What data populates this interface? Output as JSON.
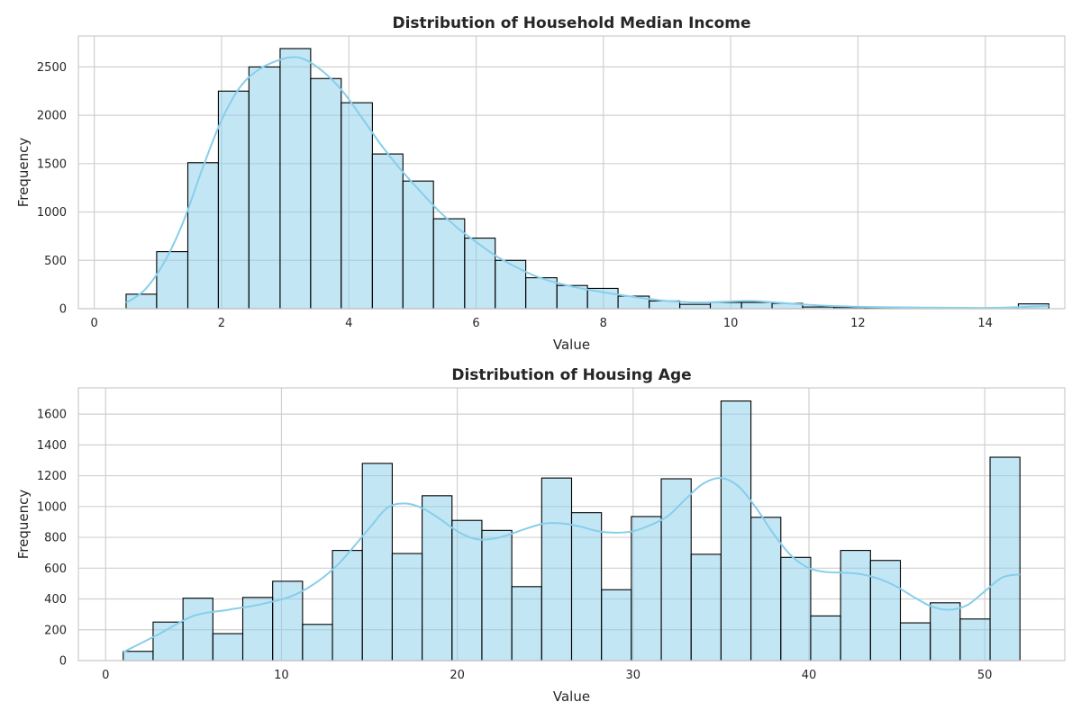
{
  "chart_data": [
    {
      "type": "bar",
      "title": "Distribution of Household Median Income",
      "xlabel": "Value",
      "ylabel": "Frequency",
      "xlim": [
        -0.25,
        15.25
      ],
      "ylim": [
        0,
        2820
      ],
      "xticks": [
        0,
        2,
        4,
        6,
        8,
        10,
        12,
        14
      ],
      "yticks": [
        0,
        500,
        1000,
        1500,
        2000,
        2500
      ],
      "grid": true,
      "bar_color": "#87CEEB",
      "edge_color": "#000000",
      "kde_color": "#87CEEB",
      "bins": [
        {
          "x0": 0.5,
          "x1": 0.98,
          "value": 150
        },
        {
          "x0": 0.98,
          "x1": 1.47,
          "value": 590
        },
        {
          "x0": 1.47,
          "x1": 1.95,
          "value": 1510
        },
        {
          "x0": 1.95,
          "x1": 2.43,
          "value": 2250
        },
        {
          "x0": 2.43,
          "x1": 2.92,
          "value": 2500
        },
        {
          "x0": 2.92,
          "x1": 3.4,
          "value": 2690
        },
        {
          "x0": 3.4,
          "x1": 3.88,
          "value": 2380
        },
        {
          "x0": 3.88,
          "x1": 4.37,
          "value": 2130
        },
        {
          "x0": 4.37,
          "x1": 4.85,
          "value": 1600
        },
        {
          "x0": 4.85,
          "x1": 5.33,
          "value": 1320
        },
        {
          "x0": 5.33,
          "x1": 5.82,
          "value": 930
        },
        {
          "x0": 5.82,
          "x1": 6.3,
          "value": 730
        },
        {
          "x0": 6.3,
          "x1": 6.78,
          "value": 500
        },
        {
          "x0": 6.78,
          "x1": 7.27,
          "value": 320
        },
        {
          "x0": 7.27,
          "x1": 7.75,
          "value": 240
        },
        {
          "x0": 7.75,
          "x1": 8.23,
          "value": 210
        },
        {
          "x0": 8.23,
          "x1": 8.72,
          "value": 130
        },
        {
          "x0": 8.72,
          "x1": 9.2,
          "value": 80
        },
        {
          "x0": 9.2,
          "x1": 9.68,
          "value": 45
        },
        {
          "x0": 9.68,
          "x1": 10.17,
          "value": 65
        },
        {
          "x0": 10.17,
          "x1": 10.65,
          "value": 65
        },
        {
          "x0": 10.65,
          "x1": 11.13,
          "value": 55
        },
        {
          "x0": 11.13,
          "x1": 11.62,
          "value": 18
        },
        {
          "x0": 11.62,
          "x1": 12.1,
          "value": 12
        },
        {
          "x0": 12.1,
          "x1": 12.58,
          "value": 8
        },
        {
          "x0": 12.58,
          "x1": 13.07,
          "value": 6
        },
        {
          "x0": 13.07,
          "x1": 13.55,
          "value": 5
        },
        {
          "x0": 13.55,
          "x1": 14.03,
          "value": 4
        },
        {
          "x0": 14.03,
          "x1": 14.52,
          "value": 3
        },
        {
          "x0": 14.52,
          "x1": 15.0,
          "value": 50
        }
      ],
      "kde": {
        "x": [
          0.5,
          0.8,
          1.1,
          1.4,
          1.7,
          2.0,
          2.3,
          2.6,
          2.9,
          3.1,
          3.3,
          3.6,
          3.9,
          4.2,
          4.5,
          4.8,
          5.1,
          5.4,
          5.7,
          6.0,
          6.3,
          6.6,
          7.0,
          7.5,
          8.0,
          8.5,
          9.0,
          9.5,
          10.0,
          10.3,
          10.6,
          11.0,
          11.5,
          12.0,
          12.5,
          13.0,
          13.5,
          14.0,
          14.5,
          15.0
        ],
        "y": [
          60,
          200,
          480,
          900,
          1450,
          1950,
          2300,
          2480,
          2570,
          2600,
          2580,
          2450,
          2250,
          1980,
          1700,
          1450,
          1230,
          1020,
          840,
          690,
          550,
          440,
          320,
          230,
          170,
          120,
          80,
          65,
          75,
          80,
          70,
          50,
          30,
          20,
          15,
          12,
          10,
          8,
          15,
          30
        ]
      }
    },
    {
      "type": "bar",
      "title": "Distribution of Housing Age",
      "xlabel": "Value",
      "ylabel": "Frequency",
      "xlim": [
        -1.55,
        54.55
      ],
      "ylim": [
        0,
        1770
      ],
      "xticks": [
        0,
        10,
        20,
        30,
        40,
        50
      ],
      "yticks": [
        0,
        200,
        400,
        600,
        800,
        1000,
        1200,
        1400,
        1600
      ],
      "grid": true,
      "bar_color": "#87CEEB",
      "edge_color": "#000000",
      "kde_color": "#87CEEB",
      "bins": [
        {
          "x0": 1.0,
          "x1": 2.7,
          "value": 60
        },
        {
          "x0": 2.7,
          "x1": 4.4,
          "value": 250
        },
        {
          "x0": 4.4,
          "x1": 6.1,
          "value": 405
        },
        {
          "x0": 6.1,
          "x1": 7.8,
          "value": 175
        },
        {
          "x0": 7.8,
          "x1": 9.5,
          "value": 410
        },
        {
          "x0": 9.5,
          "x1": 11.2,
          "value": 515
        },
        {
          "x0": 11.2,
          "x1": 12.9,
          "value": 235
        },
        {
          "x0": 12.9,
          "x1": 14.6,
          "value": 715
        },
        {
          "x0": 14.6,
          "x1": 16.3,
          "value": 1280
        },
        {
          "x0": 16.3,
          "x1": 18.0,
          "value": 695
        },
        {
          "x0": 18.0,
          "x1": 19.7,
          "value": 1070
        },
        {
          "x0": 19.7,
          "x1": 21.4,
          "value": 910
        },
        {
          "x0": 21.4,
          "x1": 23.1,
          "value": 845
        },
        {
          "x0": 23.1,
          "x1": 24.8,
          "value": 480
        },
        {
          "x0": 24.8,
          "x1": 26.5,
          "value": 1185
        },
        {
          "x0": 26.5,
          "x1": 28.2,
          "value": 960
        },
        {
          "x0": 28.2,
          "x1": 29.9,
          "value": 460
        },
        {
          "x0": 29.9,
          "x1": 31.6,
          "value": 935
        },
        {
          "x0": 31.6,
          "x1": 33.3,
          "value": 1180
        },
        {
          "x0": 33.3,
          "x1": 35.0,
          "value": 690
        },
        {
          "x0": 35.0,
          "x1": 36.7,
          "value": 1685
        },
        {
          "x0": 36.7,
          "x1": 38.4,
          "value": 930
        },
        {
          "x0": 38.4,
          "x1": 40.1,
          "value": 670
        },
        {
          "x0": 40.1,
          "x1": 41.8,
          "value": 290
        },
        {
          "x0": 41.8,
          "x1": 43.5,
          "value": 715
        },
        {
          "x0": 43.5,
          "x1": 45.2,
          "value": 650
        },
        {
          "x0": 45.2,
          "x1": 46.9,
          "value": 245
        },
        {
          "x0": 46.9,
          "x1": 48.6,
          "value": 375
        },
        {
          "x0": 48.6,
          "x1": 50.3,
          "value": 270
        },
        {
          "x0": 50.3,
          "x1": 52.0,
          "value": 1320
        }
      ],
      "kde": {
        "x": [
          1,
          3,
          5,
          7,
          9,
          11,
          13,
          15,
          16,
          17,
          18,
          19,
          20,
          21,
          22,
          23,
          24,
          25,
          26,
          27,
          28,
          29,
          30,
          31,
          32,
          33,
          34,
          35,
          36,
          37,
          38,
          39,
          40,
          41,
          42,
          43,
          44,
          45,
          46,
          47,
          48,
          49,
          50,
          51,
          52
        ],
        "y": [
          55,
          170,
          290,
          330,
          370,
          440,
          600,
          860,
          990,
          1020,
          990,
          920,
          840,
          790,
          790,
          820,
          860,
          890,
          890,
          870,
          840,
          830,
          840,
          880,
          940,
          1050,
          1150,
          1185,
          1130,
          990,
          820,
          680,
          600,
          575,
          570,
          560,
          530,
          480,
          410,
          350,
          330,
          360,
          450,
          540,
          560
        ]
      }
    }
  ]
}
